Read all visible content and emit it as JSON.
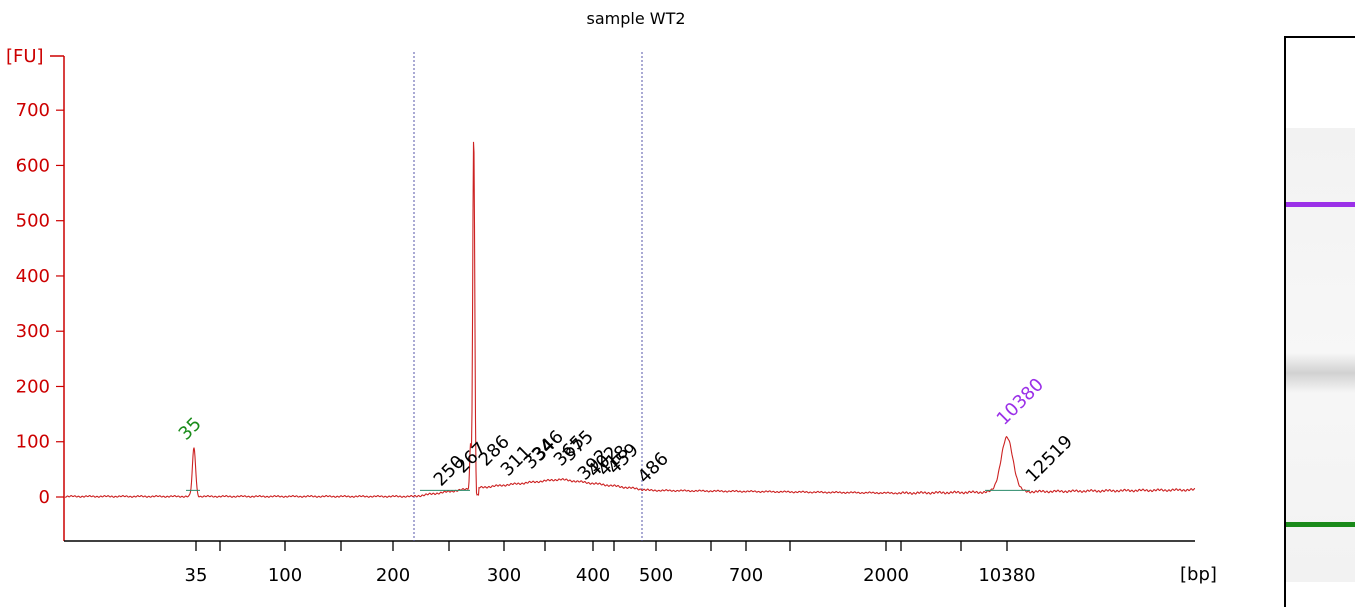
{
  "chart_data": {
    "type": "line",
    "title": "sample WT2",
    "ylabel": "[FU]",
    "xlabel": "[bp]",
    "ylim": [
      -80,
      790
    ],
    "y_ticks": [
      0,
      100,
      200,
      300,
      400,
      500,
      600,
      700
    ],
    "x_tick_labels": [
      "35",
      "100",
      "200",
      "300",
      "400",
      "500",
      "700",
      "2000",
      "10380"
    ],
    "series": [
      {
        "color": "#cc2222",
        "x": [
          "35",
          "250",
          "267",
          "286",
          "311",
          "346",
          "392",
          "486",
          "10380",
          "12519"
        ],
        "y": [
          88,
          12,
          730,
          20,
          25,
          33,
          28,
          14,
          108,
          12
        ]
      }
    ],
    "peak_labels": [
      {
        "label": "35",
        "color": "#1a8c1a"
      },
      {
        "label": "250",
        "color": "#000000"
      },
      {
        "label": "267",
        "color": "#000000"
      },
      {
        "label": "286",
        "color": "#000000"
      },
      {
        "label": "311",
        "color": "#000000"
      },
      {
        "label": "334",
        "color": "#000000"
      },
      {
        "label": "346",
        "color": "#000000"
      },
      {
        "label": "365",
        "color": "#000000"
      },
      {
        "label": "375",
        "color": "#000000"
      },
      {
        "label": "392",
        "color": "#000000"
      },
      {
        "label": "402",
        "color": "#000000"
      },
      {
        "label": "418",
        "color": "#000000"
      },
      {
        "label": "459",
        "color": "#000000"
      },
      {
        "label": "486",
        "color": "#000000"
      },
      {
        "label": "10380",
        "color": "#9b30e8"
      },
      {
        "label": "12519",
        "color": "#000000"
      }
    ],
    "colors": {
      "axis": "#cc0000",
      "trace": "#cc2222",
      "marker_lines": "#5555aa",
      "baseline": "#2a8a6a"
    }
  },
  "gel": {
    "bands": [
      {
        "name": "upper-marker",
        "color": "#9b30e8"
      },
      {
        "name": "lower-marker",
        "color": "#1a8a1a"
      }
    ]
  }
}
